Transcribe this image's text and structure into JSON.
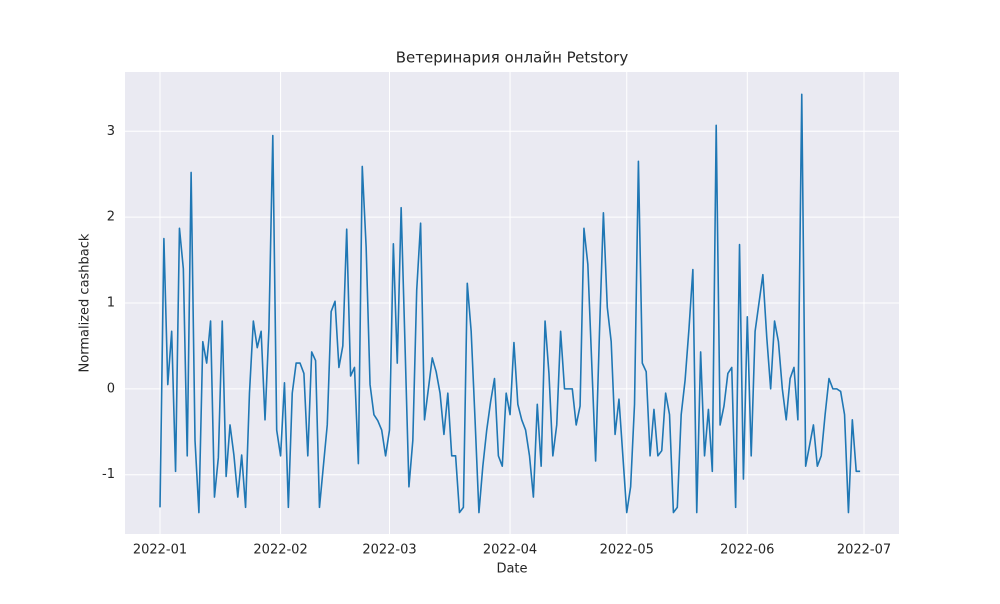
{
  "chart_data": {
    "type": "line",
    "title": "Ветеринария онлайн Petstory",
    "xlabel": "Date",
    "ylabel": "Normalized cashback",
    "series": [
      {
        "color": "#1f77b4",
        "values": [
          -1.38,
          1.75,
          0.05,
          0.67,
          -0.96,
          1.87,
          1.4,
          -0.78,
          2.52,
          -0.6,
          -1.44,
          0.55,
          0.3,
          0.79,
          -1.26,
          -0.8,
          0.79,
          -1.02,
          -0.42,
          -0.77,
          -1.26,
          -0.77,
          -1.38,
          -0.05,
          0.79,
          0.48,
          0.67,
          -0.36,
          0.7,
          2.95,
          -0.48,
          -0.78,
          0.07,
          -1.38,
          -0.05,
          0.3,
          0.3,
          0.18,
          -0.78,
          0.43,
          0.33,
          -1.38,
          -0.9,
          -0.42,
          0.9,
          1.02,
          0.25,
          0.5,
          1.86,
          0.15,
          0.25,
          -0.87,
          2.59,
          1.65,
          0.05,
          -0.3,
          -0.37,
          -0.48,
          -0.78,
          -0.48,
          1.69,
          0.3,
          2.11,
          0.5,
          -1.14,
          -0.6,
          1.15,
          1.93,
          -0.36,
          0.0,
          0.36,
          0.2,
          -0.05,
          -0.53,
          -0.05,
          -0.78,
          -0.78,
          -1.44,
          -1.38,
          1.23,
          0.67,
          -0.36,
          -1.44,
          -0.9,
          -0.48,
          -0.15,
          0.12,
          -0.78,
          -0.9,
          -0.05,
          -0.3,
          0.54,
          -0.18,
          -0.36,
          -0.48,
          -0.78,
          -1.26,
          -0.18,
          -0.9,
          0.79,
          0.18,
          -0.78,
          -0.42,
          0.67,
          0.0,
          0.0,
          0.0,
          -0.42,
          -0.2,
          1.87,
          1.45,
          0.3,
          -0.84,
          0.67,
          2.05,
          0.95,
          0.55,
          -0.53,
          -0.12,
          -0.78,
          -1.44,
          -1.14,
          -0.18,
          2.65,
          0.3,
          0.2,
          -0.78,
          -0.24,
          -0.78,
          -0.72,
          -0.05,
          -0.3,
          -1.44,
          -1.38,
          -0.3,
          0.1,
          0.7,
          1.39,
          -1.44,
          0.43,
          -0.78,
          -0.24,
          -0.96,
          3.07,
          -0.42,
          -0.2,
          0.18,
          0.25,
          -1.38,
          1.68,
          -1.05,
          0.84,
          -0.78,
          0.67,
          1.0,
          1.33,
          0.6,
          0.0,
          0.79,
          0.55,
          0.0,
          -0.36,
          0.12,
          0.25,
          -0.36,
          3.43,
          -0.9,
          -0.66,
          -0.42,
          -0.9,
          -0.78,
          -0.3,
          0.12,
          0.0,
          0.0,
          -0.03,
          -0.3,
          -1.44,
          -0.36,
          -0.96,
          -0.96
        ]
      }
    ],
    "xlim": [
      -9,
      190
    ],
    "xticks": [
      {
        "value": 0,
        "label": "2022-01"
      },
      {
        "value": 31,
        "label": "2022-02"
      },
      {
        "value": 59,
        "label": "2022-03"
      },
      {
        "value": 90,
        "label": "2022-04"
      },
      {
        "value": 120,
        "label": "2022-05"
      },
      {
        "value": 151,
        "label": "2022-06"
      },
      {
        "value": 181,
        "label": "2022-07"
      }
    ],
    "ylim": [
      -1.69,
      3.69
    ],
    "yticks": [
      -1,
      0,
      1,
      2,
      3
    ],
    "grid": true
  }
}
